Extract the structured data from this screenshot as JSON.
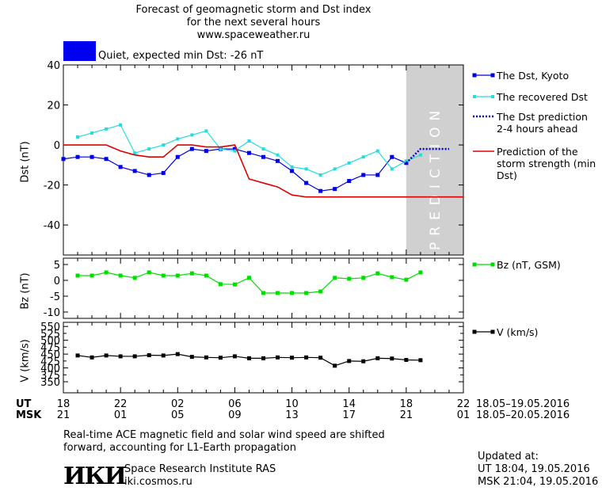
{
  "header": {
    "line1": "Forecast of geomagnetic storm and Dst index",
    "line2": "for the next several hours",
    "line3": "www.spaceweather.ru"
  },
  "status": {
    "text": "Quiet, expected min Dst: -26 nT",
    "color": "#0000ee"
  },
  "colors": {
    "dst": "#0000dd",
    "recovered": "#22dddd",
    "prediction": "#0000cc",
    "storm": "#dd0000",
    "bz": "#00dd00",
    "v": "#000000",
    "shade": "#d0d0d0"
  },
  "chart_data": [
    {
      "type": "line",
      "ylabel": "Dst (nT)",
      "ylim": [
        -55,
        40
      ],
      "yticks": [
        40,
        20,
        0,
        -20,
        -40
      ],
      "xlim": [
        0,
        28
      ],
      "prediction_region": [
        24,
        28
      ],
      "prediction_label": "PREDICTION",
      "series": [
        {
          "name": "The Dst, Kyoto",
          "x": [
            0,
            1,
            2,
            3,
            4,
            5,
            6,
            7,
            8,
            9,
            10,
            11,
            12,
            13,
            14,
            15,
            16,
            17,
            18,
            19,
            20,
            21,
            22,
            23,
            24
          ],
          "values": [
            -7,
            -6,
            -6,
            -7,
            -11,
            -13,
            -15,
            -14,
            -6,
            -2,
            -3,
            -2,
            -2,
            -4,
            -6,
            -8,
            -13,
            -19,
            -23,
            -22,
            -18,
            -15,
            -15,
            -6,
            -9
          ]
        },
        {
          "name": "The recovered Dst",
          "x": [
            1,
            2,
            3,
            4,
            5,
            6,
            7,
            8,
            9,
            10,
            11,
            12,
            13,
            14,
            15,
            16,
            17,
            18,
            19,
            20,
            21,
            22,
            23,
            24,
            25
          ],
          "values": [
            4,
            6,
            8,
            10,
            -4,
            -2,
            0,
            3,
            5,
            7,
            -2,
            -3,
            2,
            -2,
            -5,
            -11,
            -12,
            -15,
            -12,
            -9,
            -6,
            -3,
            -12,
            -8,
            -5
          ]
        },
        {
          "name": "The Dst prediction 2-4 hours ahead",
          "x": [
            24,
            25,
            26,
            27
          ],
          "values": [
            -9,
            -2,
            -2,
            -2
          ]
        },
        {
          "name": "Prediction of the storm strength (min Dst)",
          "x": [
            0,
            1,
            2,
            3,
            4,
            5,
            6,
            7,
            8,
            9,
            10,
            11,
            12,
            13,
            14,
            15,
            16,
            17,
            18,
            19,
            20,
            21,
            22,
            23,
            24,
            25,
            26,
            27,
            28
          ],
          "values": [
            0,
            0,
            0,
            0,
            -3,
            -5,
            -6,
            -6,
            0,
            0,
            -1,
            -1,
            0,
            -17,
            -19,
            -21,
            -25,
            -26,
            -26,
            -26,
            -26,
            -26,
            -26,
            -26,
            -26,
            -26,
            -26,
            -26,
            -26
          ]
        }
      ]
    },
    {
      "type": "line",
      "ylabel": "Bz (nT)",
      "ylim": [
        -12,
        7
      ],
      "yticks": [
        5,
        0,
        -5,
        -10
      ],
      "series": [
        {
          "name": "Bz (nT, GSM)",
          "x": [
            1,
            2,
            3,
            4,
            5,
            6,
            7,
            8,
            9,
            10,
            11,
            12,
            13,
            14,
            15,
            16,
            17,
            18,
            19,
            20,
            21,
            22,
            23,
            24,
            25
          ],
          "values": [
            1.5,
            1.5,
            2.5,
            1.5,
            0.8,
            2.5,
            1.5,
            1.5,
            2.2,
            1.5,
            -1.2,
            -1.3,
            0.8,
            -4,
            -4,
            -4,
            -4,
            -3.5,
            0.8,
            0.5,
            0.8,
            2.2,
            1,
            0.2,
            2.5
          ]
        }
      ]
    },
    {
      "type": "line",
      "ylabel": "V (km/s)",
      "ylim": [
        310,
        565
      ],
      "yticks": [
        550,
        500,
        450,
        400,
        350
      ],
      "ytick_labels": [
        "550",
        "500",
        "450",
        "400",
        "350"
      ],
      "ytick_extra": [
        "525",
        "475",
        "425",
        "375"
      ],
      "series": [
        {
          "name": "V (km/s)",
          "x": [
            1,
            2,
            3,
            4,
            5,
            6,
            7,
            8,
            9,
            10,
            11,
            12,
            13,
            14,
            15,
            16,
            17,
            18,
            19,
            20,
            21,
            22,
            23,
            24,
            25
          ],
          "values": [
            445,
            438,
            445,
            442,
            442,
            446,
            445,
            450,
            440,
            438,
            437,
            442,
            435,
            435,
            438,
            437,
            438,
            437,
            408,
            425,
            424,
            435,
            434,
            429,
            428
          ]
        }
      ]
    }
  ],
  "x_axis": {
    "ut_label": "UT",
    "msk_label": "MSK",
    "ut_ticks": [
      "18",
      "22",
      "02",
      "06",
      "10",
      "14",
      "18",
      "22"
    ],
    "msk_ticks": [
      "21",
      "01",
      "05",
      "09",
      "13",
      "17",
      "21",
      "01"
    ],
    "ut_range": "18.05–19.05.2016",
    "msk_range": "18.05–20.05.2016"
  },
  "footer": {
    "note1": "Real-time ACE magnetic field and solar wind speed are shifted",
    "note2": "forward, accounting for L1-Earth propagation",
    "logo": "ИКИ",
    "institute": "Space Research Institute RAS",
    "site": "iki.cosmos.ru",
    "updated_label": "Updated at:",
    "updated_ut": "UT   18:04, 19.05.2016",
    "updated_msk": "MSK 21:04, 19.05.2016"
  }
}
